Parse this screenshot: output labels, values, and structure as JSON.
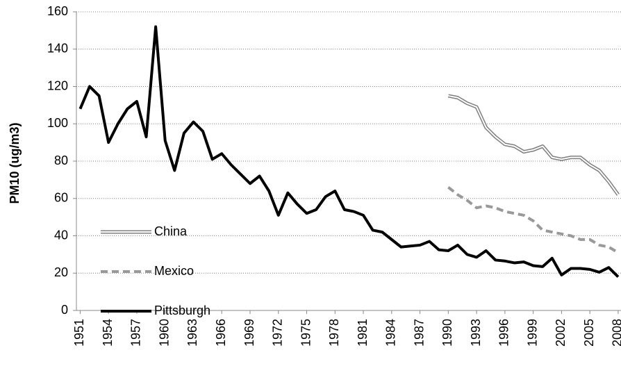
{
  "chart_data": {
    "type": "line",
    "y_label": "PM10 (ug/m3)",
    "x": [
      1951,
      1952,
      1953,
      1954,
      1955,
      1956,
      1957,
      1958,
      1959,
      1960,
      1961,
      1962,
      1963,
      1964,
      1965,
      1966,
      1967,
      1968,
      1969,
      1970,
      1971,
      1972,
      1973,
      1974,
      1975,
      1976,
      1977,
      1978,
      1979,
      1980,
      1981,
      1982,
      1983,
      1984,
      1985,
      1986,
      1987,
      1988,
      1989,
      1990,
      1991,
      1992,
      1993,
      1994,
      1995,
      1996,
      1997,
      1998,
      1999,
      2000,
      2001,
      2002,
      2003,
      2004,
      2005,
      2006,
      2007,
      2008
    ],
    "series": [
      {
        "name": "China",
        "color": "#7f7f7f",
        "style": "double",
        "values": [
          null,
          null,
          null,
          null,
          null,
          null,
          null,
          null,
          null,
          null,
          null,
          null,
          null,
          null,
          null,
          null,
          null,
          null,
          null,
          null,
          null,
          null,
          null,
          null,
          null,
          null,
          null,
          null,
          null,
          null,
          null,
          null,
          null,
          null,
          null,
          null,
          null,
          null,
          null,
          115,
          114,
          111,
          109,
          98,
          93,
          89,
          88,
          85,
          86,
          88,
          82,
          81,
          82,
          82,
          78,
          75,
          69,
          62
        ]
      },
      {
        "name": "Mexico",
        "color": "#999999",
        "style": "dashed",
        "values": [
          null,
          null,
          null,
          null,
          null,
          null,
          null,
          null,
          null,
          null,
          null,
          null,
          null,
          null,
          null,
          null,
          null,
          null,
          null,
          null,
          null,
          null,
          null,
          null,
          null,
          null,
          null,
          null,
          null,
          null,
          null,
          null,
          null,
          null,
          null,
          null,
          null,
          null,
          null,
          66,
          62,
          59,
          55,
          56,
          55,
          53,
          52,
          51,
          48,
          43,
          42,
          41,
          40,
          38,
          38,
          35,
          34,
          31
        ]
      },
      {
        "name": "Pittsburgh",
        "color": "#000000",
        "style": "solid",
        "values": [
          108,
          120,
          115,
          90,
          100,
          108,
          112,
          93,
          152,
          91,
          75,
          95,
          101,
          96,
          81,
          84,
          78,
          73,
          68,
          72,
          64,
          51,
          63,
          57,
          52,
          54,
          61,
          64,
          54,
          53,
          51,
          43,
          42,
          38,
          34,
          34.5,
          35,
          37,
          32.5,
          32,
          35,
          30,
          28.5,
          32,
          27,
          26.5,
          25.5,
          26,
          24,
          23.5,
          28,
          19,
          22.5,
          22.5,
          22,
          20.5,
          23,
          18
        ]
      }
    ],
    "xlim": [
      1950.6,
      2008.3
    ],
    "ylim": [
      0,
      160
    ],
    "xticks": [
      1951,
      1954,
      1957,
      1960,
      1963,
      1966,
      1969,
      1972,
      1975,
      1978,
      1981,
      1984,
      1987,
      1990,
      1993,
      1996,
      1999,
      2002,
      2005,
      2008
    ],
    "yticks": [
      0,
      20,
      40,
      60,
      80,
      100,
      120,
      140,
      160
    ],
    "grid": true
  }
}
